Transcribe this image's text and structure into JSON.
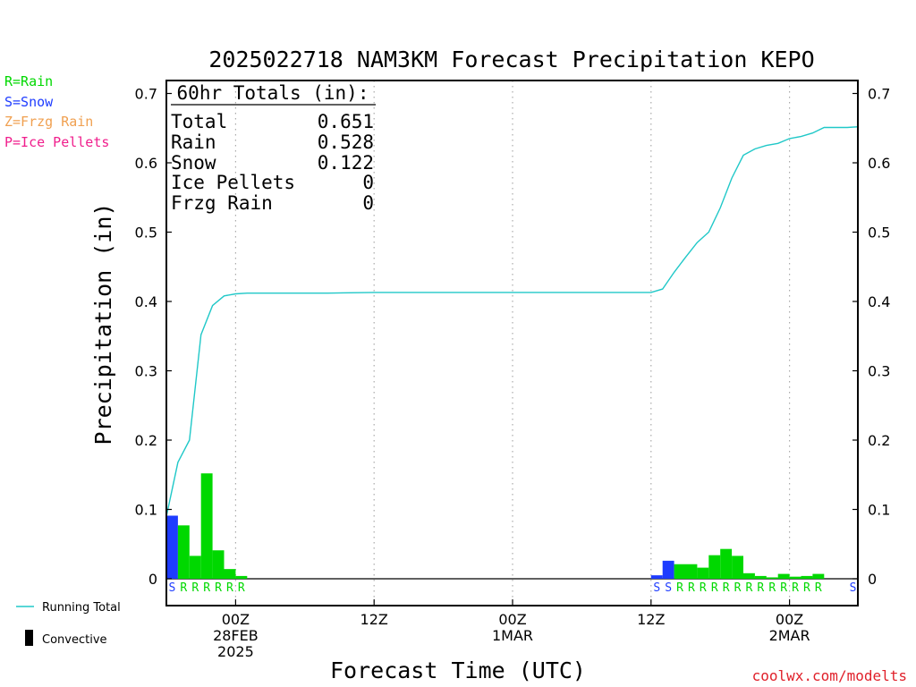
{
  "chart_data": {
    "type": "bar",
    "title": "2025022718 NAM3KM Forecast Precipitation KEPO",
    "xlabel": "Forecast Time (UTC)",
    "ylabel": "Precipitation (in)",
    "ylim": [
      0,
      0.7
    ],
    "y_ticks": [
      "0",
      "0.1",
      "0.2",
      "0.3",
      "0.4",
      "0.5",
      "0.6",
      "0.7"
    ],
    "x_range_hours": [
      0,
      60
    ],
    "grid": "vertical dotted at 6-hourly markers",
    "x_ticks": [
      {
        "hour": 6,
        "lines": [
          "00Z",
          "28FEB",
          "2025"
        ]
      },
      {
        "hour": 18,
        "lines": [
          "12Z"
        ]
      },
      {
        "hour": 30,
        "lines": [
          "00Z",
          "1MAR"
        ]
      },
      {
        "hour": 42,
        "lines": [
          "12Z"
        ]
      },
      {
        "hour": 54,
        "lines": [
          "00Z",
          "2MAR"
        ]
      }
    ],
    "bars": [
      {
        "hour": 1,
        "value": 0.091,
        "type": "S"
      },
      {
        "hour": 2,
        "value": 0.077,
        "type": "R"
      },
      {
        "hour": 3,
        "value": 0.033,
        "type": "R"
      },
      {
        "hour": 4,
        "value": 0.152,
        "type": "R"
      },
      {
        "hour": 5,
        "value": 0.041,
        "type": "R"
      },
      {
        "hour": 6,
        "value": 0.014,
        "type": "R"
      },
      {
        "hour": 7,
        "value": 0.004,
        "type": "R"
      },
      {
        "hour": 43,
        "value": 0.005,
        "type": "S"
      },
      {
        "hour": 44,
        "value": 0.026,
        "type": "S"
      },
      {
        "hour": 45,
        "value": 0.021,
        "type": "R"
      },
      {
        "hour": 46,
        "value": 0.021,
        "type": "R"
      },
      {
        "hour": 47,
        "value": 0.016,
        "type": "R"
      },
      {
        "hour": 48,
        "value": 0.034,
        "type": "R"
      },
      {
        "hour": 49,
        "value": 0.043,
        "type": "R"
      },
      {
        "hour": 50,
        "value": 0.033,
        "type": "R"
      },
      {
        "hour": 51,
        "value": 0.008,
        "type": "R"
      },
      {
        "hour": 52,
        "value": 0.004,
        "type": "R"
      },
      {
        "hour": 53,
        "value": 0.002,
        "type": "R"
      },
      {
        "hour": 54,
        "value": 0.007,
        "type": "R"
      },
      {
        "hour": 55,
        "value": 0.003,
        "type": "R"
      },
      {
        "hour": 56,
        "value": 0.004,
        "type": "R"
      },
      {
        "hour": 57,
        "value": 0.007,
        "type": "R"
      },
      {
        "hour": 60,
        "value": 0.0,
        "type": "S"
      }
    ],
    "running_total": {
      "name": "Running Total",
      "x": [
        0,
        1,
        2,
        3,
        4,
        5,
        6,
        7,
        8,
        10,
        14,
        18,
        30,
        42,
        43,
        44,
        45,
        46,
        47,
        48,
        49,
        50,
        51,
        52,
        53,
        54,
        55,
        56,
        57,
        58,
        59,
        60
      ],
      "y": [
        0.09,
        0.168,
        0.2,
        0.352,
        0.394,
        0.408,
        0.411,
        0.412,
        0.412,
        0.412,
        0.412,
        0.413,
        0.413,
        0.413,
        0.418,
        0.442,
        0.464,
        0.485,
        0.5,
        0.535,
        0.578,
        0.611,
        0.62,
        0.625,
        0.628,
        0.635,
        0.638,
        0.643,
        0.651,
        0.651,
        0.651,
        0.652
      ]
    }
  },
  "totals_box": {
    "header": "60hr Totals (in):",
    "rows": [
      {
        "label": "Total",
        "value": "0.651"
      },
      {
        "label": "Rain",
        "value": "0.528"
      },
      {
        "label": "Snow",
        "value": "0.122"
      },
      {
        "label": "Ice Pellets",
        "value": "0"
      },
      {
        "label": "Frzg Rain",
        "value": "0"
      }
    ]
  },
  "type_legend": [
    {
      "text": "R=Rain",
      "color": "#00d800"
    },
    {
      "text": "S=Snow",
      "color": "#1e3cff"
    },
    {
      "text": "Z=Frzg Rain",
      "color": "#f0a050"
    },
    {
      "text": "P=Ice Pellets",
      "color": "#f01e8c"
    }
  ],
  "bottom_legend": {
    "running_total": "Running Total",
    "convective": "Convective"
  },
  "credit": "coolwx.com/modelts",
  "colors": {
    "rain": "#00d800",
    "snow": "#1e3cff",
    "running_total": "#20c8c8",
    "convective": "#000000",
    "credit": "#e0202a"
  }
}
